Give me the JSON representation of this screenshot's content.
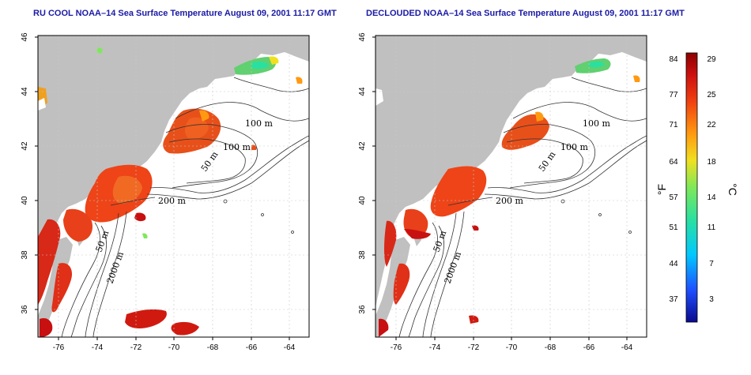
{
  "titles": {
    "left": "RU COOL NOAA–14 Sea Surface Temperature August 09, 2001 11:17 GMT",
    "right": "DECLOUDED NOAA–14 Sea Surface Temperature August 09, 2001 11:17 GMT"
  },
  "axes": {
    "x_ticks": [
      "-76",
      "-74",
      "-72",
      "-70",
      "-68",
      "-66",
      "-64"
    ],
    "y_ticks": [
      "46",
      "44",
      "42",
      "40",
      "38",
      "36"
    ]
  },
  "contour_labels": {
    "c100a": "100 m",
    "c100b": "100 m",
    "c50a": "50 m",
    "c200": "200 m",
    "c50b": "50 m",
    "c2000": "2000 m"
  },
  "colorbar": {
    "fahrenheit_label": "°F",
    "celsius_label": "°C",
    "fahrenheit_ticks": [
      "84",
      "77",
      "71",
      "64",
      "57",
      "51",
      "44",
      "37"
    ],
    "celsius_ticks": [
      "29",
      "25",
      "22",
      "18",
      "14",
      "11",
      "7",
      "3"
    ],
    "colors": [
      "#0a0a8c",
      "#1e50ff",
      "#00c8ff",
      "#2ae0a0",
      "#7ee85a",
      "#f0e020",
      "#ff9a10",
      "#f04010",
      "#cc1010",
      "#8c0000"
    ]
  },
  "colors": {
    "land": "#c0c0c0",
    "water": "#ffffff",
    "grid": "#c8c8c8",
    "title": "#1a1aa6"
  }
}
